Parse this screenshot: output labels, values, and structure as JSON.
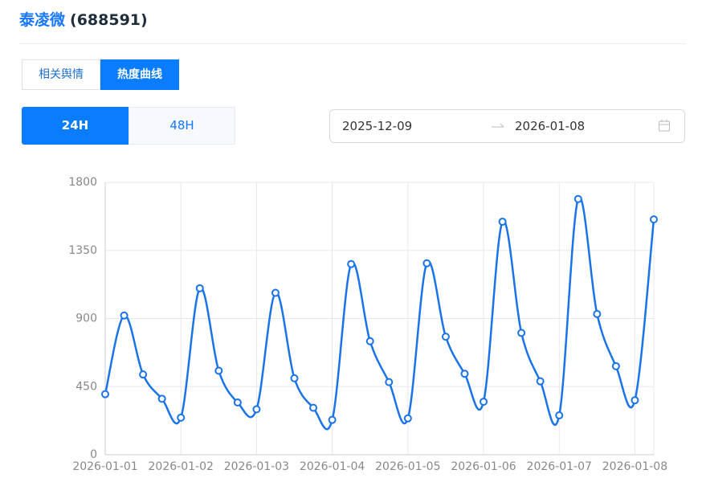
{
  "header": {
    "name": "泰凌微",
    "code": "(688591)"
  },
  "tabs": [
    "相关舆情",
    "热度曲线"
  ],
  "range_buttons": [
    "24H",
    "48H"
  ],
  "date_range": {
    "start": "2025-12-09",
    "end": "2026-01-08"
  },
  "chart_data": {
    "type": "line",
    "categories": [
      "2026-01-01",
      null,
      null,
      null,
      "2026-01-02",
      null,
      null,
      null,
      "2026-01-03",
      null,
      null,
      null,
      "2026-01-04",
      null,
      null,
      null,
      "2026-01-05",
      null,
      null,
      null,
      "2026-01-06",
      null,
      null,
      null,
      "2026-01-07",
      null,
      null,
      null,
      "2026-01-08",
      null
    ],
    "series": [
      {
        "name": "热度",
        "color": "#1a73e8",
        "values": [
          400,
          920,
          530,
          370,
          245,
          1100,
          555,
          345,
          300,
          1070,
          505,
          310,
          230,
          1260,
          750,
          480,
          240,
          1265,
          780,
          535,
          350,
          1540,
          805,
          485,
          260,
          1690,
          930,
          585,
          360,
          1555
        ]
      }
    ],
    "ylim": [
      0,
      1800
    ],
    "yticks": [
      0,
      450,
      900,
      1350,
      1800
    ],
    "grid": true
  }
}
